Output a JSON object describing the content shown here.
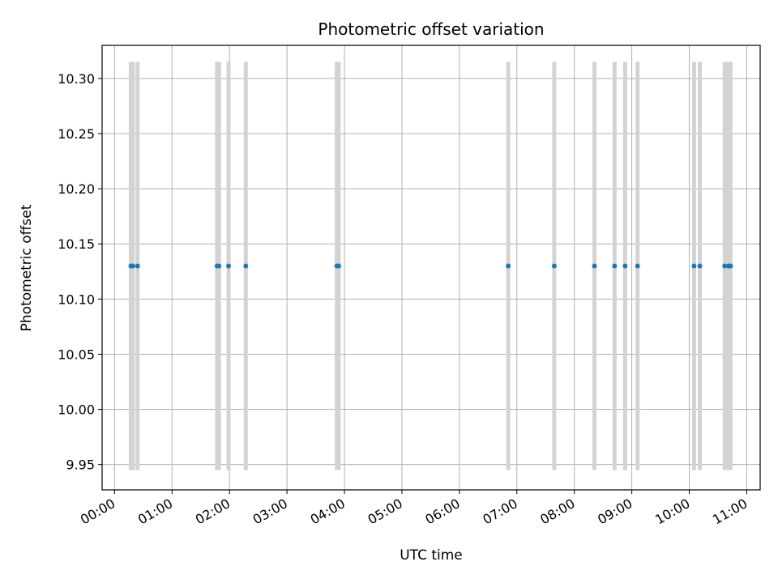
{
  "chart_data": {
    "type": "scatter",
    "title": "Photometric offset variation",
    "xlabel": "UTC time",
    "ylabel": "Photometric offset",
    "xlim": [
      "-00:13",
      "11:14"
    ],
    "ylim": [
      9.927,
      10.33
    ],
    "grid": true,
    "x_ticks": [
      "00:00",
      "01:00",
      "02:00",
      "03:00",
      "04:00",
      "05:00",
      "06:00",
      "07:00",
      "08:00",
      "09:00",
      "10:00",
      "11:00"
    ],
    "y_ticks": [
      "9.95",
      "10.00",
      "10.05",
      "10.10",
      "10.15",
      "10.20",
      "10.25",
      "10.30"
    ],
    "points": {
      "x": [
        "00:17",
        "00:19",
        "00:24",
        "01:47",
        "01:49",
        "01:59",
        "02:17",
        "03:52",
        "03:54",
        "06:51",
        "07:39",
        "08:21",
        "08:42",
        "08:53",
        "09:06",
        "10:05",
        "10:11",
        "10:37",
        "10:41",
        "10:43"
      ],
      "y": [
        10.13,
        10.13,
        10.13,
        10.13,
        10.13,
        10.13,
        10.13,
        10.13,
        10.13,
        10.13,
        10.13,
        10.13,
        10.13,
        10.13,
        10.13,
        10.13,
        10.13,
        10.13,
        10.13,
        10.13
      ],
      "yerr": [
        0.185,
        0.185,
        0.185,
        0.185,
        0.185,
        0.185,
        0.185,
        0.185,
        0.185,
        0.185,
        0.185,
        0.185,
        0.185,
        0.185,
        0.185,
        0.185,
        0.185,
        0.185,
        0.185,
        0.185
      ]
    },
    "colors": {
      "point": "#1f77b4",
      "error_bar": "#d3d3d3",
      "grid": "#b0b0b0",
      "axis": "#000000"
    }
  }
}
